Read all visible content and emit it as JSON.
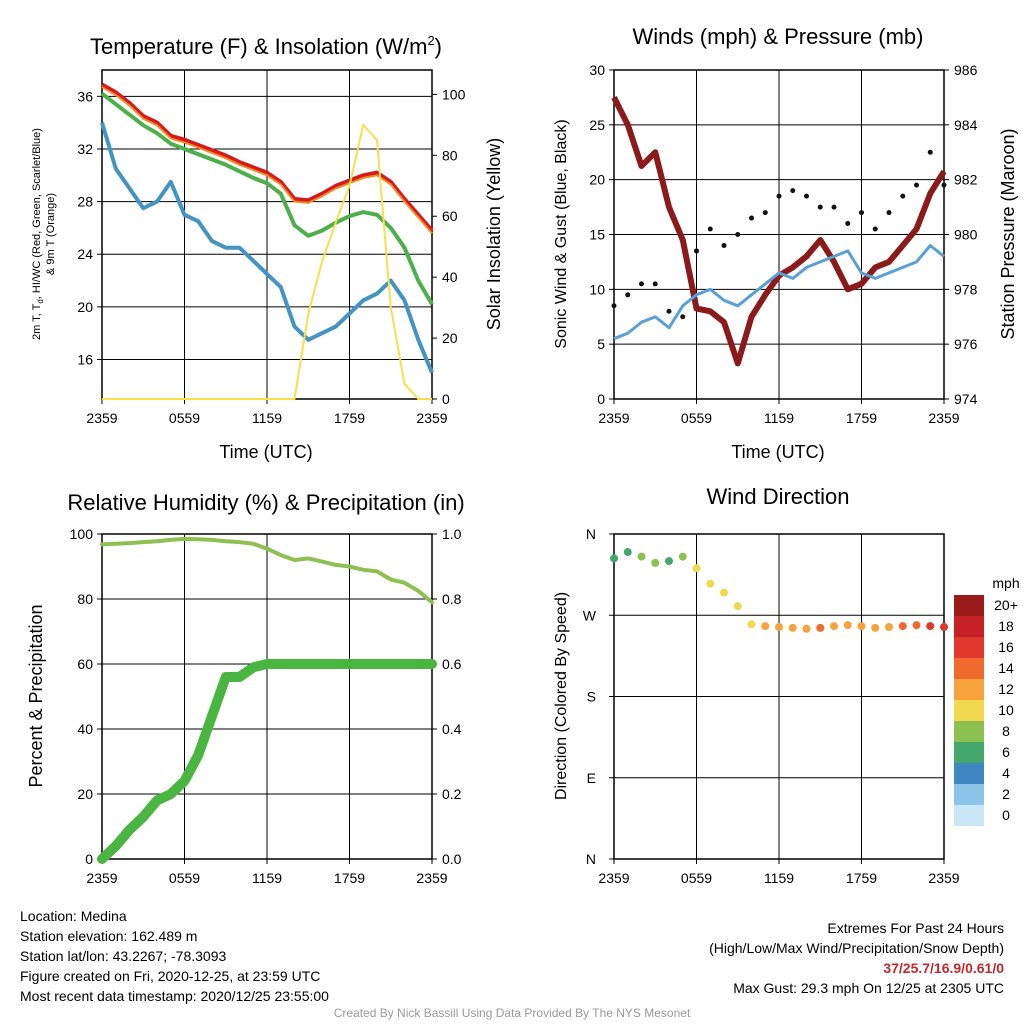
{
  "chart_data": [
    {
      "type": "line",
      "title": "Temperature (F) & Insolation (W/m²)",
      "title_main": "Temperature (F) & Insolation (W/m",
      "title_sup": "2",
      "title_end": ")",
      "xlabel": "Time (UTC)",
      "ylabel_line1": "2m T, T",
      "ylabel_sub": "d",
      "ylabel_line1_end": ", HI/WC (Red, Green, Scarlet/Blue)",
      "ylabel_line2": "& 9m T (Orange)",
      "ylabel_right": "Solar Insolation (Yellow)",
      "xticks": [
        "2359",
        "0559",
        "1159",
        "1759",
        "2359"
      ],
      "yticks_left": [
        16,
        20,
        24,
        28,
        32,
        36
      ],
      "yticks_right": [
        0,
        20,
        40,
        60,
        80,
        100
      ],
      "ylim_left": [
        13,
        38
      ],
      "ylim_right": [
        0,
        108
      ],
      "grid": true,
      "x_hours": [
        0,
        1,
        2,
        3,
        4,
        5,
        6,
        7,
        8,
        9,
        10,
        11,
        12,
        13,
        14,
        15,
        16,
        17,
        18,
        19,
        20,
        21,
        22,
        23,
        24
      ],
      "series": [
        {
          "color": "#d7191c",
          "axis": "left",
          "width": 4,
          "values": [
            36.9,
            36.3,
            35.5,
            34.5,
            34.0,
            33.0,
            32.7,
            32.3,
            31.9,
            31.5,
            31.0,
            30.6,
            30.2,
            29.5,
            28.2,
            28.1,
            28.6,
            29.2,
            29.6,
            30.0,
            30.2,
            29.5,
            28.2,
            27.0,
            25.8
          ]
        },
        {
          "color": "#f08a24",
          "axis": "left",
          "width": 2,
          "values": [
            36.7,
            36.1,
            35.3,
            34.3,
            33.8,
            32.8,
            32.5,
            32.1,
            31.7,
            31.3,
            30.8,
            30.4,
            30.0,
            29.3,
            28.0,
            27.9,
            28.4,
            29.0,
            29.4,
            29.8,
            30.0,
            29.3,
            28.0,
            26.8,
            25.6
          ]
        },
        {
          "color": "#4daf4a",
          "axis": "left",
          "width": 4,
          "values": [
            36.2,
            35.4,
            34.6,
            33.8,
            33.2,
            32.4,
            32.0,
            31.6,
            31.2,
            30.8,
            30.3,
            29.8,
            29.4,
            28.6,
            26.2,
            25.4,
            25.8,
            26.4,
            26.9,
            27.2,
            27.0,
            26.0,
            24.5,
            22.0,
            20.2
          ]
        },
        {
          "color": "#4393c3",
          "axis": "left",
          "width": 4,
          "values": [
            34.0,
            30.5,
            29.0,
            27.5,
            28.0,
            29.5,
            27.0,
            26.5,
            25.0,
            24.5,
            24.5,
            23.5,
            22.5,
            21.5,
            18.5,
            17.5,
            18.0,
            18.5,
            19.5,
            20.5,
            21.0,
            22.0,
            20.5,
            17.5,
            15.0
          ]
        },
        {
          "color": "#f7e04a",
          "axis": "right",
          "width": 2,
          "values": [
            0,
            0,
            0,
            0,
            0,
            0,
            0,
            0,
            0,
            0,
            0,
            0,
            0,
            0,
            0,
            28,
            45,
            58,
            70,
            90,
            85,
            30,
            5,
            0,
            0
          ]
        }
      ]
    },
    {
      "type": "line",
      "title": "Winds (mph) & Pressure (mb)",
      "xlabel": "Time (UTC)",
      "ylabel": "Sonic Wind & Gust (Blue, Black)",
      "ylabel_right": "Station Pressure (Maroon)",
      "xticks": [
        "2359",
        "0559",
        "1159",
        "1759",
        "2359"
      ],
      "yticks_left": [
        0,
        5,
        10,
        15,
        20,
        25,
        30
      ],
      "yticks_right": [
        974,
        976,
        978,
        980,
        982,
        984,
        986
      ],
      "ylim_left": [
        0,
        30
      ],
      "ylim_right": [
        974,
        986
      ],
      "grid": true,
      "x_hours": [
        0,
        1,
        2,
        3,
        4,
        5,
        6,
        7,
        8,
        9,
        10,
        11,
        12,
        13,
        14,
        15,
        16,
        17,
        18,
        19,
        20,
        21,
        22,
        23,
        24
      ],
      "series": [
        {
          "color": "#8b1a1a",
          "axis": "right",
          "width": 6,
          "kind": "line",
          "values": [
            985.0,
            984.0,
            982.5,
            983.0,
            981.0,
            979.8,
            977.3,
            977.2,
            976.8,
            975.3,
            977.0,
            977.8,
            978.5,
            978.8,
            979.2,
            979.8,
            979.0,
            978.0,
            978.2,
            978.8,
            979.0,
            979.6,
            980.2,
            981.5,
            982.3
          ]
        },
        {
          "color": "#5aa0d5",
          "axis": "left",
          "width": 3,
          "kind": "line",
          "values": [
            5.5,
            6.0,
            7.0,
            7.5,
            6.5,
            8.5,
            9.5,
            10.0,
            9.0,
            8.5,
            9.5,
            10.5,
            11.5,
            11.0,
            12.0,
            12.5,
            13.0,
            13.5,
            11.5,
            11.0,
            11.5,
            12.0,
            12.5,
            14.0,
            13.0
          ]
        },
        {
          "color": "#111111",
          "axis": "left",
          "width": 0,
          "kind": "dots",
          "values": [
            8.5,
            9.5,
            10.5,
            10.5,
            8.0,
            7.5,
            13.5,
            15.5,
            14.0,
            15.0,
            16.5,
            17.0,
            18.5,
            19.0,
            18.5,
            17.5,
            17.5,
            16.0,
            17.0,
            15.5,
            17.0,
            18.5,
            19.5,
            22.5,
            19.5
          ]
        }
      ]
    },
    {
      "type": "line",
      "title": "Relative Humidity (%) & Precipitation (in)",
      "ylabel": "Percent & Precipitation",
      "xticks": [
        "2359",
        "0559",
        "1159",
        "1759",
        "2359"
      ],
      "yticks_left": [
        0,
        20,
        40,
        60,
        80,
        100
      ],
      "yticks_right": [
        "0.0",
        "0.2",
        "0.4",
        "0.6",
        "0.8",
        "1.0"
      ],
      "ylim_left": [
        0,
        100
      ],
      "ylim_right": [
        0,
        1.0
      ],
      "grid": true,
      "x_hours": [
        0,
        1,
        2,
        3,
        4,
        5,
        6,
        7,
        8,
        9,
        10,
        11,
        12,
        13,
        14,
        15,
        16,
        17,
        18,
        19,
        20,
        21,
        22,
        23,
        24
      ],
      "series": [
        {
          "color": "#8cc152",
          "axis": "left",
          "width": 4,
          "name": "",
          "values": [
            96.8,
            97.0,
            97.2,
            97.5,
            97.8,
            98.2,
            98.5,
            98.4,
            98.2,
            97.8,
            97.5,
            97.0,
            95.5,
            93.5,
            92.0,
            92.5,
            91.5,
            90.5,
            90.0,
            89.0,
            88.5,
            86.0,
            85.0,
            82.5,
            79.0
          ]
        },
        {
          "color": "#4bb541",
          "axis": "left",
          "width": 10,
          "name": "",
          "values": [
            0,
            4,
            9,
            13,
            18,
            20,
            24,
            32,
            44,
            56,
            56,
            59,
            60,
            60,
            60,
            60,
            60,
            60,
            60,
            60,
            60,
            60,
            60,
            60,
            60
          ]
        }
      ]
    },
    {
      "type": "scatter",
      "title": "Wind Direction",
      "ylabel": "Direction (Colored By Speed)",
      "xticks": [
        "2359",
        "0559",
        "1159",
        "1759",
        "2359"
      ],
      "yticks": [
        "N",
        "W",
        "S",
        "E",
        "N"
      ],
      "ylim_degrees": [
        0,
        360
      ],
      "grid": true,
      "x_hours": [
        0,
        1,
        2,
        3,
        4,
        5,
        6,
        7,
        8,
        9,
        10,
        11,
        12,
        13,
        14,
        15,
        16,
        17,
        18,
        19,
        20,
        21,
        22,
        23,
        24
      ],
      "directions_deg": [
        333,
        340,
        335,
        328,
        330,
        335,
        322,
        305,
        295,
        280,
        260,
        258,
        257,
        256,
        255,
        256,
        258,
        259,
        258,
        256,
        257,
        258,
        259,
        258,
        257
      ],
      "speeds_mph": [
        5,
        6,
        7,
        7,
        6,
        8,
        9,
        10,
        9,
        9,
        10,
        11,
        12,
        12,
        12,
        13,
        12,
        12,
        11,
        11,
        12,
        13,
        14,
        15,
        16
      ],
      "colorbar": {
        "title": "mph",
        "labels": [
          "20+",
          "18",
          "16",
          "14",
          "12",
          "10",
          "8",
          "6",
          "4",
          "2",
          "0"
        ],
        "colors": [
          "#9b1b1b",
          "#c42026",
          "#e0382c",
          "#f06a2d",
          "#f8a23c",
          "#f0d84f",
          "#8cc152",
          "#44a86a",
          "#3f86c2",
          "#8cc4ea",
          "#c9e7f7"
        ]
      }
    }
  ],
  "info": {
    "location": "Location: Medina",
    "elevation": "Station elevation: 162.489 m",
    "latlon": "Station lat/lon: 43.2267; -78.3093",
    "created": "Figure created on Fri, 2020-12-25, at 23:59 UTC",
    "recent": "Most recent data timestamp: 2020/12/25 23:55:00"
  },
  "extremes": {
    "heading": "Extremes For Past 24 Hours",
    "subheading": "(High/Low/Max Wind/Precipitation/Snow Depth)",
    "values": "37/25.7/16.9/0.61/0",
    "gust": "Max Gust: 29.3 mph On 12/25 at 2305 UTC"
  },
  "credit": "Created By Nick Bassill Using Data Provided By The NYS Mesonet"
}
